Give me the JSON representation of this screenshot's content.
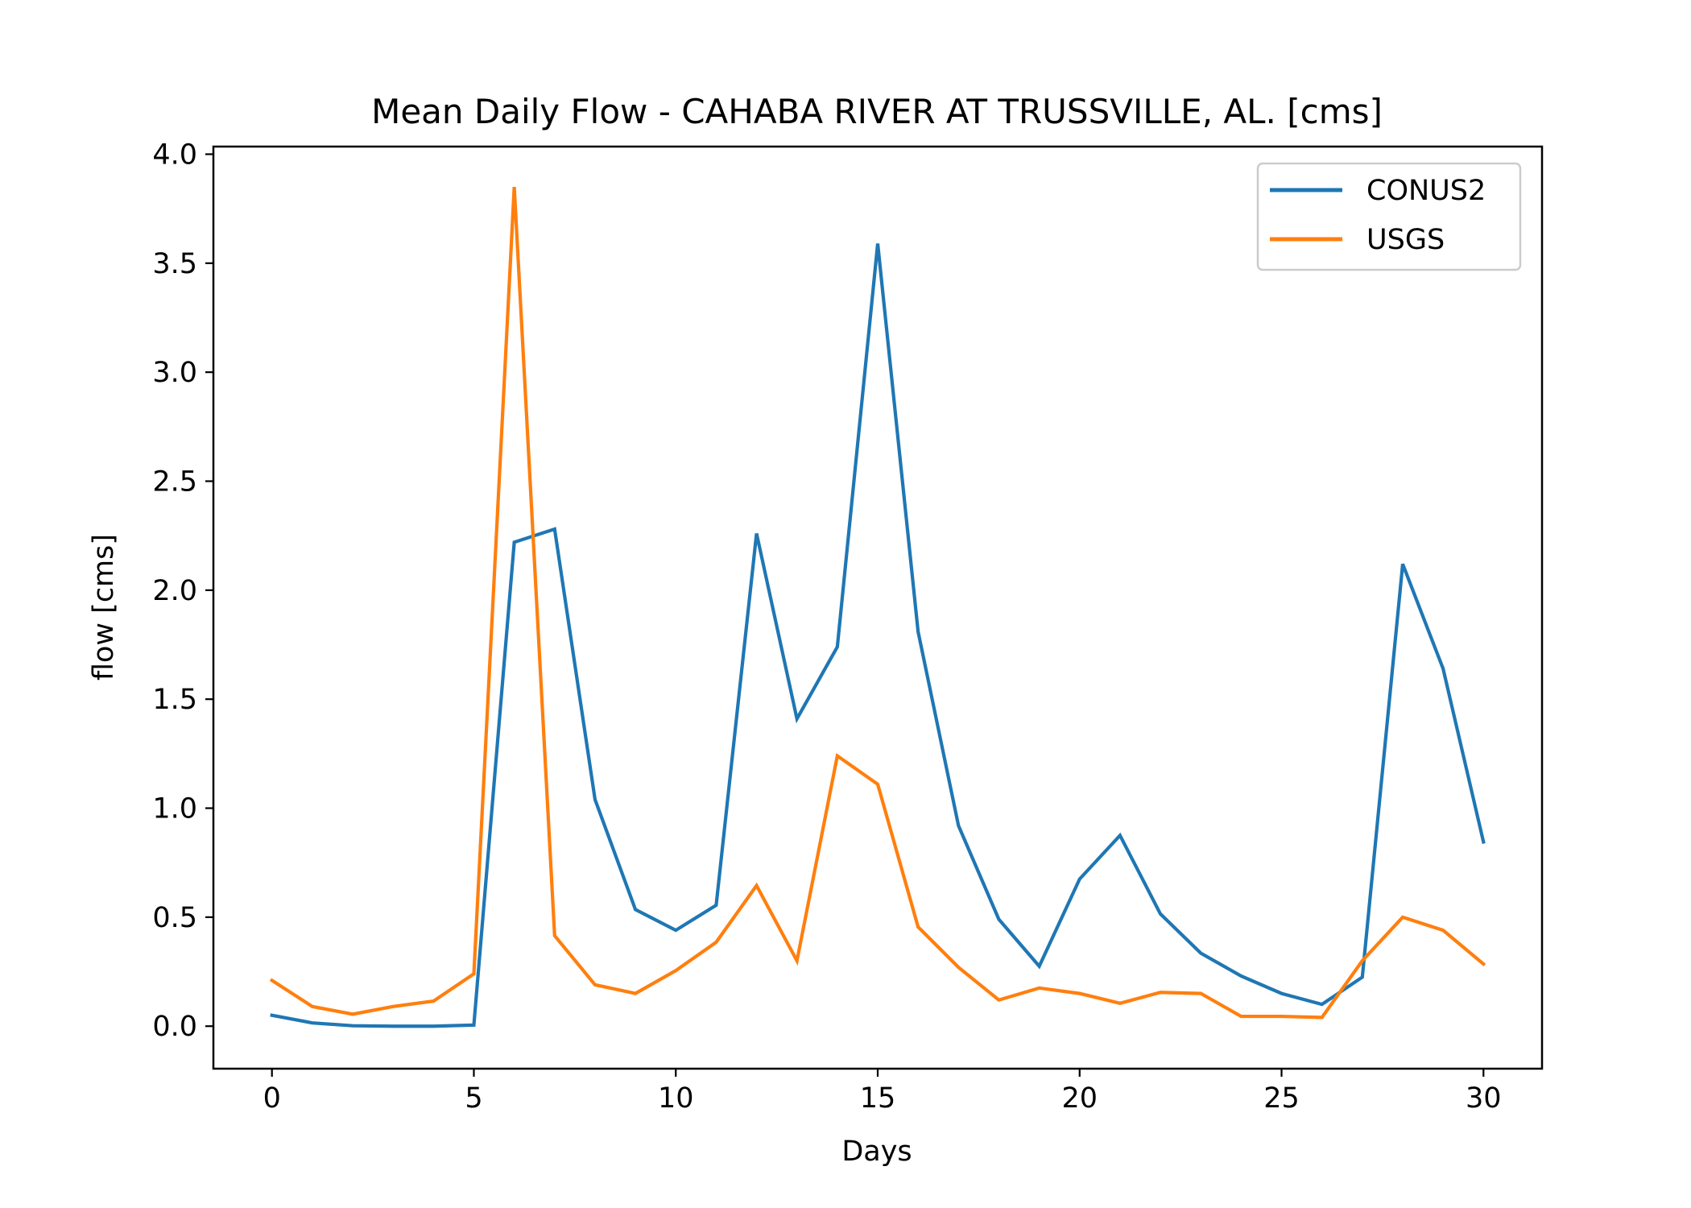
{
  "chart_data": {
    "type": "line",
    "title": "Mean Daily Flow - CAHABA RIVER AT TRUSSVILLE, AL. [cms]",
    "xlabel": "Days",
    "ylabel": "flow [cms]",
    "xlim": [
      -1.45,
      31.45
    ],
    "ylim": [
      -0.195,
      4.035
    ],
    "xticks": [
      0,
      5,
      10,
      15,
      20,
      25,
      30
    ],
    "xtick_labels": [
      "0",
      "5",
      "10",
      "15",
      "20",
      "25",
      "30"
    ],
    "yticks": [
      0.0,
      0.5,
      1.0,
      1.5,
      2.0,
      2.5,
      3.0,
      3.5,
      4.0
    ],
    "ytick_labels": [
      "0.0",
      "0.5",
      "1.0",
      "1.5",
      "2.0",
      "2.5",
      "3.0",
      "3.5",
      "4.0"
    ],
    "grid": false,
    "legend_position": "upper right",
    "x": [
      0,
      1,
      2,
      3,
      4,
      5,
      6,
      7,
      8,
      9,
      10,
      11,
      12,
      13,
      14,
      15,
      16,
      17,
      18,
      19,
      20,
      21,
      22,
      23,
      24,
      25,
      26,
      27,
      28,
      29,
      30
    ],
    "series": [
      {
        "name": "CONUS2",
        "color": "#1f77b4",
        "values": [
          0.05,
          0.015,
          0.002,
          0.0,
          0.0,
          0.005,
          2.22,
          2.28,
          1.04,
          0.535,
          0.44,
          0.555,
          2.26,
          1.41,
          1.74,
          3.59,
          1.81,
          0.92,
          0.49,
          0.275,
          0.675,
          0.875,
          0.515,
          0.335,
          0.23,
          0.15,
          0.1,
          0.225,
          2.12,
          1.64,
          0.845
        ]
      },
      {
        "name": "USGS",
        "color": "#ff7f0e",
        "values": [
          0.21,
          0.09,
          0.055,
          0.09,
          0.115,
          0.24,
          3.85,
          0.415,
          0.19,
          0.15,
          0.255,
          0.385,
          0.645,
          0.3,
          1.24,
          1.11,
          0.455,
          0.27,
          0.12,
          0.175,
          0.15,
          0.105,
          0.155,
          0.15,
          0.045,
          0.045,
          0.04,
          0.3,
          0.5,
          0.44,
          0.285
        ]
      }
    ]
  }
}
